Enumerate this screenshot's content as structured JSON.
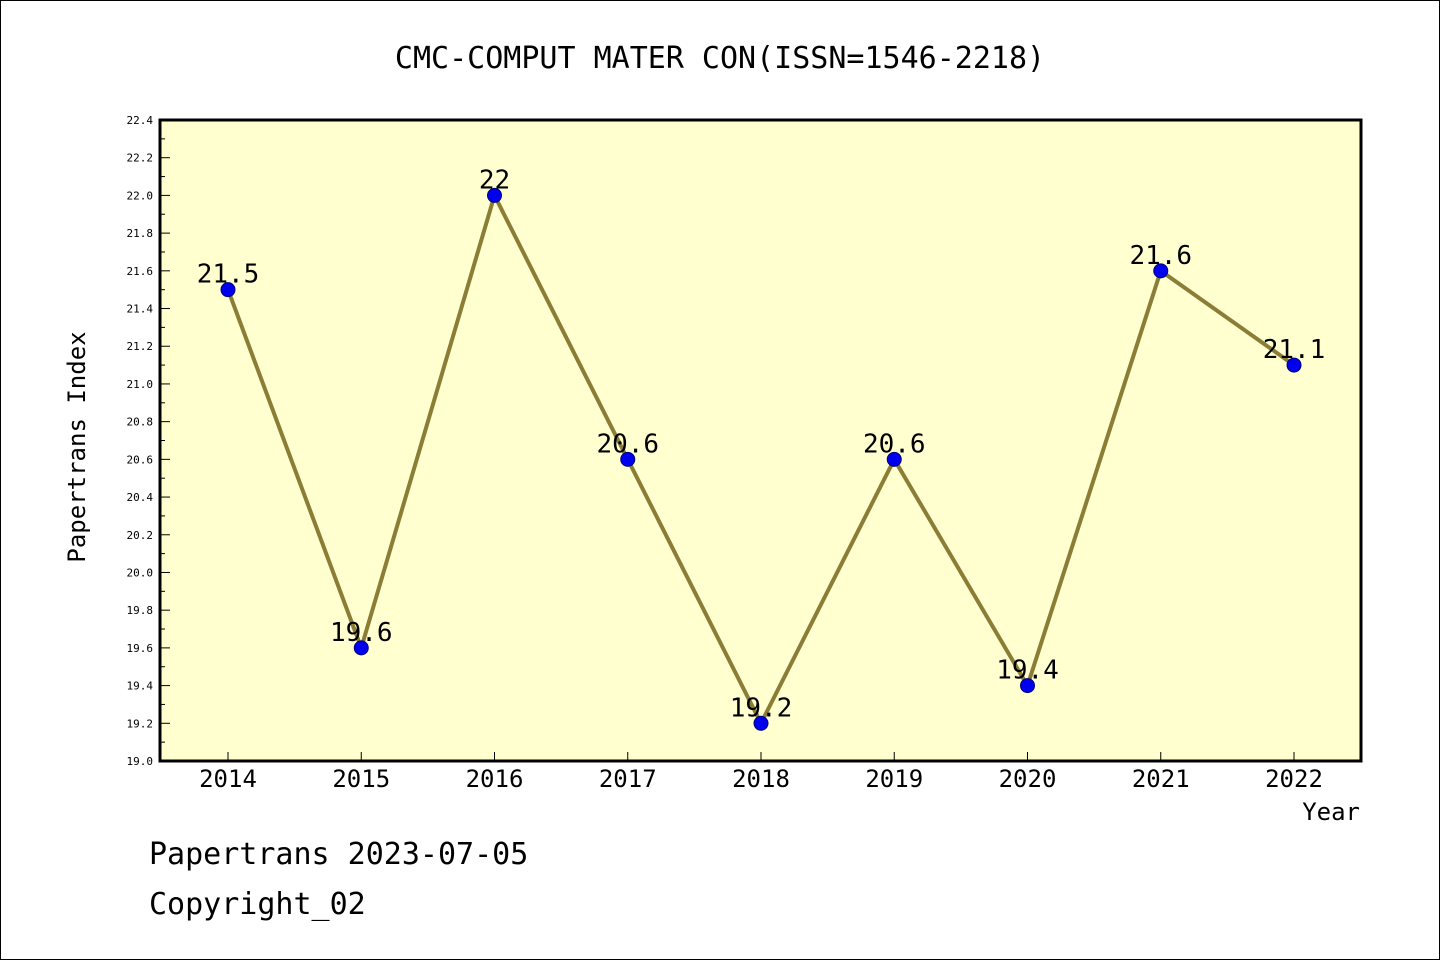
{
  "chart_data": {
    "type": "line",
    "title": "CMC-COMPUT MATER CON(ISSN=1546-2218)",
    "xlabel": "Year",
    "ylabel": "Papertrans Index",
    "categories": [
      "2014",
      "2015",
      "2016",
      "2017",
      "2018",
      "2019",
      "2020",
      "2021",
      "2022"
    ],
    "series": [
      {
        "values": [
          21.5,
          19.6,
          22,
          20.6,
          19.2,
          20.6,
          19.4,
          21.6,
          21.1
        ],
        "labels": [
          "21.5",
          "19.6",
          "22",
          "20.6",
          "19.2",
          "20.6",
          "19.4",
          "21.6",
          "21.1"
        ]
      }
    ],
    "ylim": [
      19.0,
      22.4
    ],
    "yticks": [
      "19.0",
      "19.2",
      "19.4",
      "19.6",
      "19.8",
      "20.0",
      "20.2",
      "20.4",
      "20.6",
      "20.8",
      "21.0",
      "21.2",
      "21.4",
      "21.6",
      "21.8",
      "22.0",
      "22.2",
      "22.4"
    ],
    "grid": false,
    "colors": {
      "plot_background": "#ffffd0",
      "line": "#8b7d35",
      "marker": "#0000ee",
      "marker_edge": "#00007a"
    }
  },
  "footer": {
    "date_line": "Papertrans 2023-07-05",
    "copyright": "Copyright_02"
  }
}
